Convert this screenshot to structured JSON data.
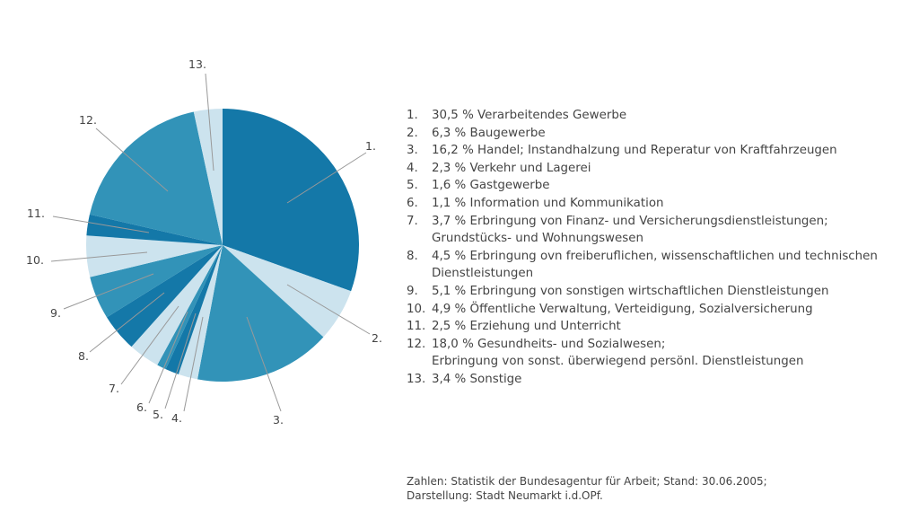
{
  "chart_data": {
    "type": "pie",
    "start_angle": "top, clockwise",
    "colors": {
      "dark": "#1478a8",
      "mid": "#3293b8",
      "light": "#cce3ee"
    },
    "slices": [
      {
        "label": "1.",
        "value": 30.5,
        "percent_text": "30,5 %",
        "name": "Verarbeitendes Gewerbe",
        "color": "#1478a8"
      },
      {
        "label": "2.",
        "value": 6.3,
        "percent_text": "6,3 %",
        "name": "Baugewerbe",
        "color": "#cce3ee"
      },
      {
        "label": "3.",
        "value": 16.2,
        "percent_text": "16,2 %",
        "name": "Handel; Instandhalzung und Reperatur von Kraftfahrzeugen",
        "color": "#3293b8"
      },
      {
        "label": "4.",
        "value": 2.3,
        "percent_text": "2,3 %",
        "name": "Verkehr und Lagerei",
        "color": "#cce3ee"
      },
      {
        "label": "5.",
        "value": 1.6,
        "percent_text": "1,6 %",
        "name": "Gastgewerbe",
        "color": "#1478a8"
      },
      {
        "label": "6.",
        "value": 1.1,
        "percent_text": "1,1 %",
        "name": "Information und Kommunikation",
        "color": "#3293b8"
      },
      {
        "label": "7.",
        "value": 3.7,
        "percent_text": "3,7 %",
        "name": "Erbringung von Finanz- und Versicherungsdienstleistungen;\nGrundstücks- und Wohnungswesen",
        "color": "#cce3ee"
      },
      {
        "label": "8.",
        "value": 4.5,
        "percent_text": "4,5 %",
        "name": "Erbringung ovn freiberuflichen, wissenschaftlichen und technischen\nDienstleistungen",
        "color": "#1478a8"
      },
      {
        "label": "9.",
        "value": 5.1,
        "percent_text": "5,1 %",
        "name": "Erbringung von sonstigen wirtschaftlichen Dienstleistungen",
        "color": "#3293b8"
      },
      {
        "label": "10.",
        "value": 4.9,
        "percent_text": "4,9 %",
        "name": "Öffentliche Verwaltung, Verteidigung, Sozialversicherung",
        "color": "#cce3ee"
      },
      {
        "label": "11.",
        "value": 2.5,
        "percent_text": "2,5 %",
        "name": "Erziehung und Unterricht",
        "color": "#1478a8"
      },
      {
        "label": "12.",
        "value": 18.0,
        "percent_text": "18,0 %",
        "name": "Gesundheits- und Sozialwesen;\nErbringung von sonst. überwiegend persönl. Dienstleistungen",
        "color": "#3293b8"
      },
      {
        "label": "13.",
        "value": 3.4,
        "percent_text": "3,4 %",
        "name": "Sonstige",
        "color": "#cce3ee"
      }
    ]
  },
  "source": {
    "line1": "Zahlen: Statistik der Bundesagentur für Arbeit; Stand: 30.06.2005;",
    "line2": "Darstellung: Stadt Neumarkt i.d.OPf."
  }
}
